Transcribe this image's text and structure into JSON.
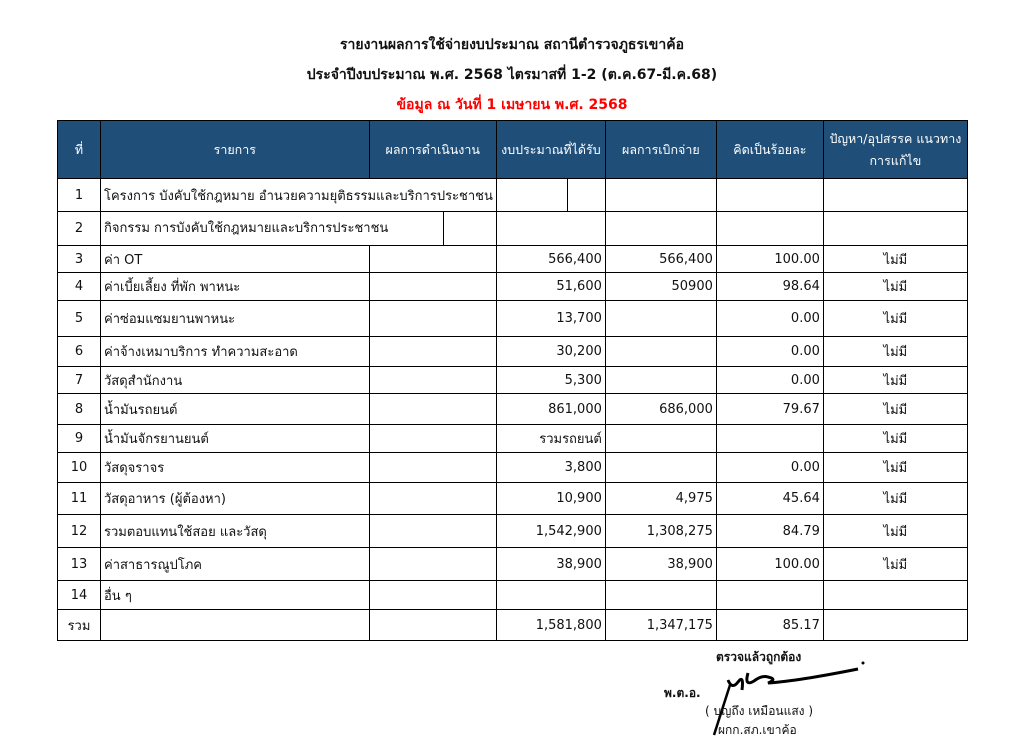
{
  "title": {
    "line1": "รายงานผลการใช้จ่ายงบประมาณ สถานีตำรวจภูธรเขาค้อ",
    "line2": "ประจำปีงบประมาณ พ.ศ. 2568 ไตรมาสที่ 1-2 (ต.ค.67-มี.ค.68)",
    "line3": "ข้อมูล ณ วันที่ 1 เมษายน พ.ศ. 2568"
  },
  "colors": {
    "header_bg": "#1f4e79",
    "date_line": "#ff0000"
  },
  "headers": [
    "ที่",
    "รายการ",
    "ผลการดำเนินงาน",
    "งบประมาณที่ได้รับ",
    "ผลการเบิกจ่าย",
    "คิดเป็นร้อยละ",
    "ปัญหา/อุปสรรค แนวทางการแก้ไข"
  ],
  "row1": {
    "no": "1",
    "item": "โครงการ บังคับใช้กฎหมาย อำนวยความยุติธรรมและบริการประชาชน"
  },
  "row2": {
    "no": "2",
    "item": "กิจกรรม การบังคับใช้กฎหมายและบริการประชาชน"
  },
  "rows": [
    {
      "no": "3",
      "item": "ค่า OT",
      "budget": "566,400",
      "spent": "566,400",
      "pct": "100.00",
      "issue": "ไม่มี"
    },
    {
      "no": "4",
      "item": "ค่าเบี้ยเลี้ยง ที่พัก พาหนะ",
      "budget": "51,600",
      "spent": "50900",
      "pct": "98.64",
      "issue": "ไม่มี"
    },
    {
      "no": "5",
      "item": "ค่าซ่อมแซมยานพาหนะ",
      "budget": "13,700",
      "spent": "",
      "pct": "0.00",
      "issue": "ไม่มี"
    },
    {
      "no": "6",
      "item": "ค่าจ้างเหมาบริการ ทำความสะอาด",
      "budget": "30,200",
      "spent": "",
      "pct": "0.00",
      "issue": "ไม่มี"
    },
    {
      "no": "7",
      "item": "วัสดุสำนักงาน",
      "budget": "5,300",
      "spent": "",
      "pct": "0.00",
      "issue": "ไม่มี"
    },
    {
      "no": "8",
      "item": "น้ำมันรถยนต์",
      "budget": "861,000",
      "spent": "686,000",
      "pct": "79.67",
      "issue": "ไม่มี"
    },
    {
      "no": "9",
      "item": "น้ำมันจักรยานยนต์",
      "budget": "รวมรถยนต์",
      "spent": "",
      "pct": "",
      "issue": "ไม่มี"
    },
    {
      "no": "10",
      "item": "วัสดุจราจร",
      "budget": "3,800",
      "spent": "",
      "pct": "0.00",
      "issue": "ไม่มี"
    },
    {
      "no": "11",
      "item": "วัสดุอาหาร (ผู้ต้องหา)",
      "budget": "10,900",
      "spent": "4,975",
      "pct": "45.64",
      "issue": "ไม่มี"
    },
    {
      "no": "12",
      "item": "รวมตอบแทนใช้สอย และวัสดุ",
      "budget": "1,542,900",
      "spent": "1,308,275",
      "pct": "84.79",
      "issue": "ไม่มี"
    },
    {
      "no": "13",
      "item": "ค่าสาธารณูปโภค",
      "budget": "38,900",
      "spent": "38,900",
      "pct": "100.00",
      "issue": "ไม่มี"
    },
    {
      "no": "14",
      "item": "อื่น ๆ",
      "budget": "",
      "spent": "",
      "pct": "",
      "issue": ""
    }
  ],
  "total": {
    "label": "รวม",
    "budget": "1,581,800",
    "spent": "1,347,175",
    "pct": "85.17"
  },
  "signature": {
    "checked": "ตรวจแล้วถูกต้อง",
    "rank": "พ.ต.อ.",
    "name": "( บุญถึง เหมือนแสง )",
    "position": "ผกก.สภ.เขาค้อ"
  }
}
